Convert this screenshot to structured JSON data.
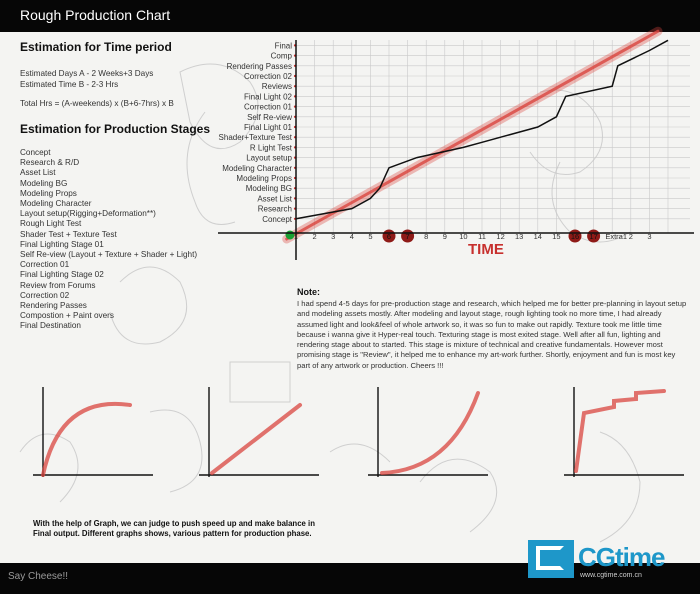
{
  "window": {
    "title": "Rough Production Chart",
    "footer": "Say Cheese!!"
  },
  "time_section": {
    "heading": "Estimation for Time period",
    "lines": [
      "Estimated Days A - 2 Weeks+3 Days",
      "Estimated Time B - 2-3 Hrs",
      "Total Hrs = (A-weekends) x (B+6-7hrs) x B"
    ]
  },
  "stage_section": {
    "heading": "Estimation for Production Stages",
    "items": [
      "Concept",
      "Research & R/D",
      "Asset List",
      "Modeling BG",
      "Modeling Props",
      "Modeling Character",
      "Layout setup(Rigging+Deformation**)",
      "Rough Light Test",
      "Shader Test + Texture Test",
      "Final Lighting Stage 01",
      "Self Re-view (Layout + Texture + Shader + Light)",
      "Correction 01",
      "Final Lighting Stage 02",
      "Review from Forums",
      "Correction 02",
      "Rendering Passes",
      "Compostion + Paint overs",
      "Final Destination"
    ]
  },
  "note": {
    "title": "Note:",
    "body": "I had spend 4-5 days for pre-production stage and research, which helped me for better pre-planning in layout setup and modeling assets mostly. After modeling and layout stage, rough lighting took no more time, I had already assumed light and look&feel of whole artwork so, it was so fun to make out rapidly. Texture took me little time because i wanna give it Hyper-real touch. Texturing stage is most exited stage. Well after all fun, lighting and rendering stage about to started. This stage is mixture of technical and creative fundamentals. However most promising stage is \"Review\", it helped me to enhance my art-work further. Shortly, enjoyment and fun is most key part of any artwork or production. Cheers !!!"
  },
  "caption": "With the help of Graph, we can judge to push speed up and make balance in Final output. Different graphs shows, various pattern for production phase.",
  "logo": {
    "text": "CGtime",
    "url": "www.cgtime.com.cn"
  },
  "chart_data": [
    {
      "type": "line",
      "xlabel": "TIME",
      "ylabel": "",
      "x_ticks": [
        "1",
        "2",
        "3",
        "4",
        "5",
        "6",
        "7",
        "8",
        "9",
        "10",
        "11",
        "12",
        "13",
        "14",
        "15",
        "16",
        "17",
        "Extra1",
        "2",
        "3"
      ],
      "highlighted_ticks": [
        "6",
        "7",
        "16",
        "17"
      ],
      "y_ticks": [
        "Concept",
        "Research",
        "Asset List",
        "Modeling BG",
        "Modeling Props",
        "Modeling Character",
        "Layout setup",
        "R Light Test",
        "Shader+Texture Test",
        "Final Light 01",
        "Self Re-view",
        "Correction 01",
        "Final Light 02",
        "Reviews",
        "Correction 02",
        "Rendering Passes",
        "Comp",
        "Final"
      ],
      "series": [
        {
          "x": [
            0,
            3,
            4,
            4.5,
            5,
            6.5,
            9,
            10,
            13,
            14,
            14.5,
            17,
            17.3,
            19,
            20
          ],
          "y": [
            0,
            1.0,
            2,
            3,
            5,
            6,
            7,
            7.5,
            9,
            10,
            12,
            13,
            15,
            16.5,
            17.5
          ]
        },
        {
          "x": [
            -0.5,
            20
          ],
          "y": [
            -1,
            18
          ],
          "style": "target-trend"
        }
      ],
      "grid": true,
      "legend": "none"
    },
    {
      "type": "line",
      "shape": "concave-rising"
    },
    {
      "type": "line",
      "shape": "linear-rising"
    },
    {
      "type": "line",
      "shape": "convex-rising"
    },
    {
      "type": "line",
      "shape": "stepped-rising"
    }
  ],
  "colors": {
    "bar": "#060606",
    "trend": "#d9453f",
    "progress": "#111111",
    "tick_highlight": "#8e1a17",
    "start_dot": "#19a032",
    "logo": "#1e97c9",
    "axis_label": "#c7302e",
    "stage_label": "#cc2a2a"
  }
}
